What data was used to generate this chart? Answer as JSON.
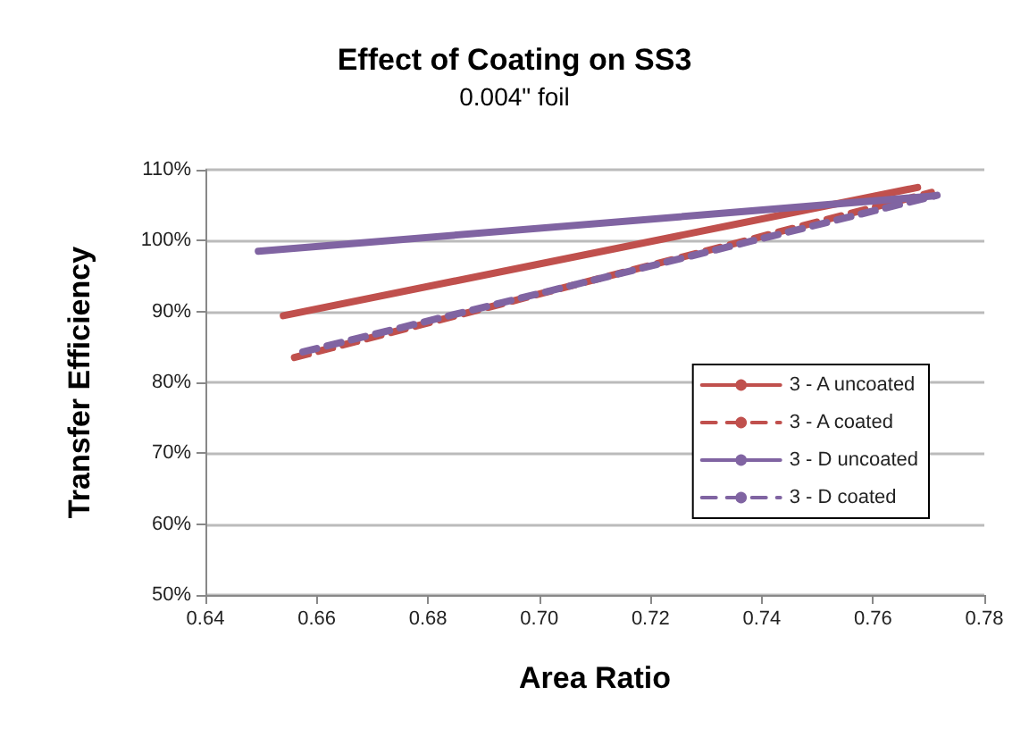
{
  "chart_data": {
    "type": "line",
    "title": "Effect of Coating on SS3",
    "subtitle": "0.004\" foil",
    "xlabel": "Area Ratio",
    "ylabel": "Transfer Efficiency",
    "series": [
      {
        "name": "3 - A uncoated",
        "color": "#c0504d",
        "line_style": "solid",
        "x": [
          0.654,
          0.768
        ],
        "values": [
          89.4,
          107.5
        ]
      },
      {
        "name": "3 - A coated",
        "color": "#c0504d",
        "line_style": "dashed",
        "x": [
          0.656,
          0.7705
        ],
        "values": [
          83.5,
          106.8
        ]
      },
      {
        "name": "3 - D uncoated",
        "color": "#8064a2",
        "line_style": "solid",
        "x": [
          0.6495,
          0.771
        ],
        "values": [
          98.5,
          106.3
        ]
      },
      {
        "name": "3 - D coated",
        "color": "#8064a2",
        "line_style": "dashed",
        "x": [
          0.6575,
          0.7715
        ],
        "values": [
          84.3,
          106.4
        ]
      }
    ],
    "xlim": [
      0.64,
      0.78
    ],
    "xticks": [
      {
        "value": 0.64,
        "label": "0.64"
      },
      {
        "value": 0.66,
        "label": "0.66"
      },
      {
        "value": 0.68,
        "label": "0.68"
      },
      {
        "value": 0.7,
        "label": "0.70"
      },
      {
        "value": 0.72,
        "label": "0.72"
      },
      {
        "value": 0.74,
        "label": "0.74"
      },
      {
        "value": 0.76,
        "label": "0.76"
      },
      {
        "value": 0.78,
        "label": "0.78"
      }
    ],
    "ylim": [
      50,
      110
    ],
    "yticks": [
      {
        "value": 50,
        "label": "50%"
      },
      {
        "value": 60,
        "label": "60%"
      },
      {
        "value": 70,
        "label": "70%"
      },
      {
        "value": 80,
        "label": "80%"
      },
      {
        "value": 90,
        "label": "90%"
      },
      {
        "value": 100,
        "label": "100%"
      },
      {
        "value": 110,
        "label": "110%"
      }
    ],
    "grid": "y",
    "legend": "right",
    "marker": "none"
  }
}
